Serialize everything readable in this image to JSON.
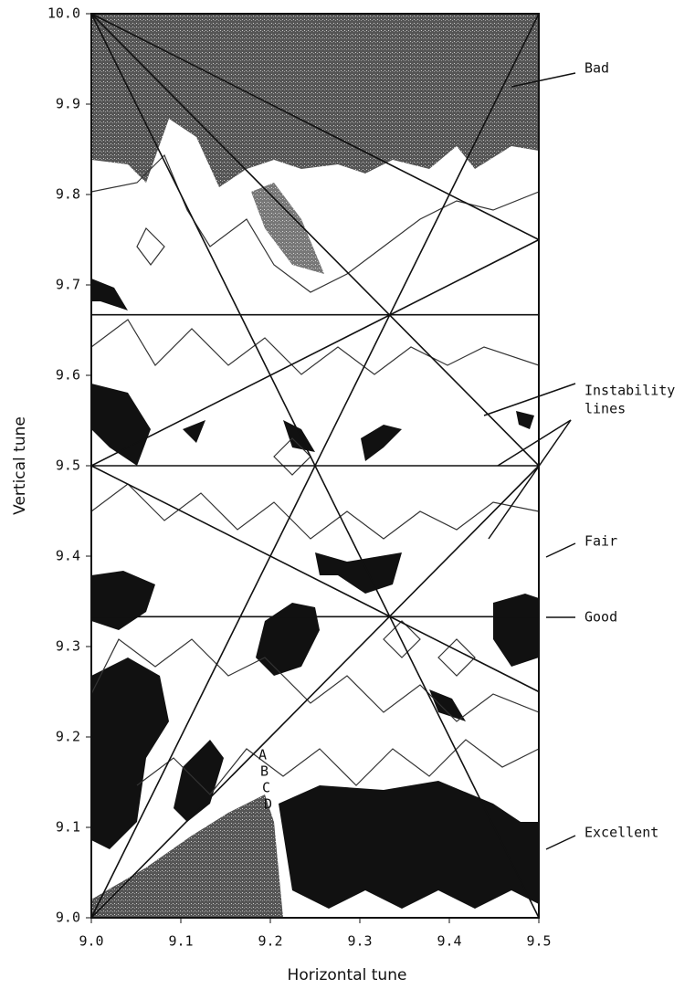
{
  "chart_data": {
    "type": "contour",
    "xlabel": "Horizontal tune",
    "ylabel": "Vertical tune",
    "xlim": [
      9.0,
      9.5
    ],
    "ylim": [
      9.0,
      10.0
    ],
    "xticks": [
      {
        "value": 9.0,
        "label": "9.0"
      },
      9.1,
      9.2,
      9.3,
      9.4,
      9.5
    ],
    "yticks": [
      {
        "value": 9.0,
        "label": "9.0"
      },
      9.1,
      9.2,
      9.3,
      9.4,
      9.5,
      9.6,
      9.7,
      9.8,
      9.9,
      {
        "value": 10.0,
        "label": "10.0"
      }
    ],
    "color": "#111",
    "lines": [
      {
        "x": [
          9.0,
          9.5
        ],
        "y": [
          10.0,
          9.75
        ]
      },
      {
        "x": [
          9.0,
          9.5
        ],
        "y": [
          10.0,
          9.5
        ]
      },
      {
        "x": [
          9.0,
          9.5
        ],
        "y": [
          10.0,
          9.0
        ]
      },
      {
        "x": [
          9.0,
          9.5
        ],
        "y": [
          9.5,
          9.25
        ]
      },
      {
        "x": [
          9.0,
          9.5
        ],
        "y": [
          9.5,
          9.75
        ]
      },
      {
        "x": [
          9.0,
          9.5
        ],
        "y": [
          9.0,
          10.0
        ]
      },
      {
        "x": [
          9.0,
          9.5
        ],
        "y": [
          9.0,
          9.5
        ]
      },
      {
        "x": [
          9.0,
          9.5
        ],
        "y": [
          9.667,
          9.667
        ]
      },
      {
        "x": [
          9.0,
          9.5
        ],
        "y": [
          9.5,
          9.5
        ]
      },
      {
        "x": [
          9.0,
          9.5
        ],
        "y": [
          9.333,
          9.333
        ]
      }
    ],
    "annotations": {
      "bad": "Bad",
      "instability": "Instability",
      "lines": "lines",
      "fair": "Fair",
      "good": "Good",
      "excellent": "Excellent",
      "a": "A",
      "b": "B",
      "c": "C",
      "d": "D"
    }
  }
}
